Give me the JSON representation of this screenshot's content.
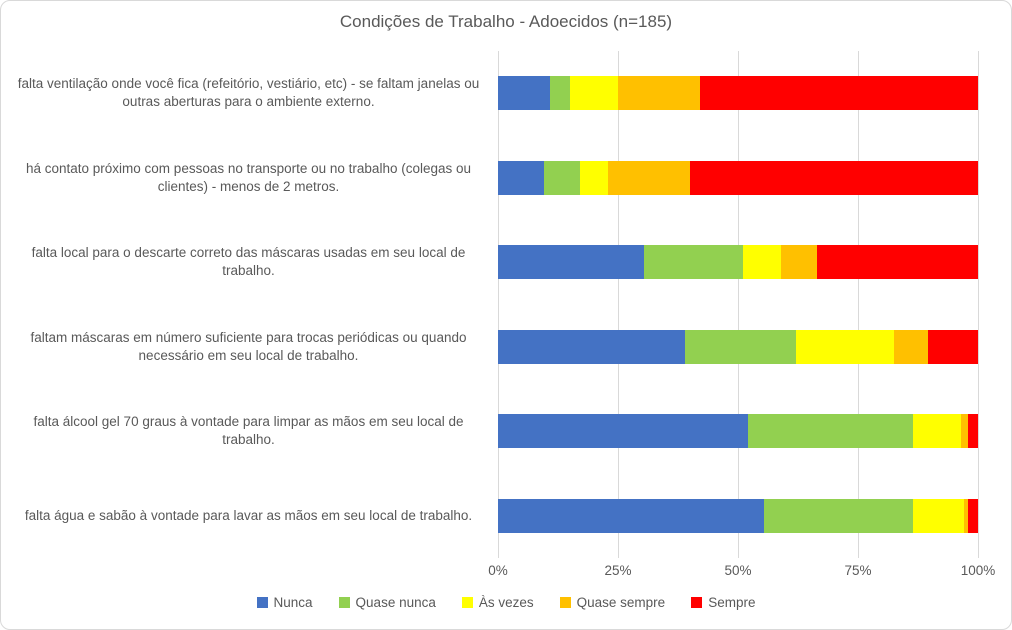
{
  "chart_data": {
    "type": "bar",
    "orientation": "horizontal",
    "stacked_percent": true,
    "title": "Condições de Trabalho - Adoecidos (n=185)",
    "categories": [
      "falta ventilação onde você fica (refeitório, vestiário, etc) - se faltam janelas ou outras aberturas para o ambiente externo.",
      "há contato próximo com pessoas no transporte ou no trabalho (colegas ou clientes) - menos de 2 metros.",
      "falta local para o descarte correto das máscaras usadas em seu local de trabalho.",
      "faltam máscaras em número suficiente para trocas periódicas ou quando necessário em seu local de trabalho.",
      "falta álcool gel 70 graus à vontade para limpar as mãos em seu local de trabalho.",
      "falta água e sabão à vontade para lavar as mãos em seu local de trabalho."
    ],
    "series": [
      {
        "name": "Nunca",
        "color": "#4472C4",
        "values": [
          10.8,
          9.5,
          30.5,
          39.0,
          52.0,
          55.5
        ]
      },
      {
        "name": "Quase nunca",
        "color": "#92D050",
        "values": [
          4.2,
          7.5,
          20.5,
          23.0,
          34.5,
          31.0
        ]
      },
      {
        "name": "Às vezes",
        "color": "#FFFF00",
        "values": [
          10.0,
          6.0,
          8.0,
          20.5,
          10.0,
          10.5
        ]
      },
      {
        "name": "Quase sempre",
        "color": "#FFC000",
        "values": [
          17.0,
          17.0,
          7.5,
          7.0,
          1.5,
          1.0
        ]
      },
      {
        "name": "Sempre",
        "color": "#FF0000",
        "values": [
          58.0,
          60.0,
          33.5,
          10.5,
          2.0,
          2.0
        ]
      }
    ],
    "x_ticks": [
      "0%",
      "25%",
      "50%",
      "75%",
      "100%"
    ],
    "xlim": [
      0,
      100
    ],
    "grid": "vertical",
    "legend_position": "bottom",
    "text_color": "#595959",
    "gridline_color": "#D9D9D9"
  }
}
